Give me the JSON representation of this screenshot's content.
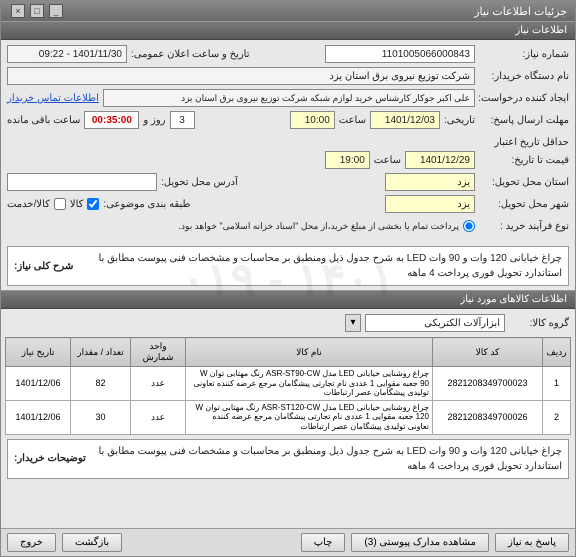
{
  "window": {
    "title": "جزئیات اطلاعات نیاز"
  },
  "section1": {
    "title": "اطلاعات نیاز"
  },
  "fields": {
    "need_no_label": "شماره نیاز:",
    "need_no": "1101005066000843",
    "announce_label": "تاریخ و ساعت اعلان عمومی:",
    "announce_value": "1401/11/30 - 09:22",
    "buyer_org_label": "نام دستگاه خریدار:",
    "buyer_org": "شرکت توزیع نیروی برق استان یزد",
    "requester_label": "ایجاد کننده درخواست:",
    "requester": "علی اکبر جوکار  کارشناس خرید لوازم شبکه  شرکت توزیع نیروی برق استان یزد",
    "contact_link": "اطلاعات تماس خریدار",
    "deadline_label": "مهلت ارسال پاسخ:",
    "deadline_date": "1401/12/03",
    "time_label": "ساعت",
    "deadline_time": "10:00",
    "day_label": "روز و",
    "days_left": "3",
    "remaining_label": "ساعت باقی مانده",
    "countdown": "00:35:00",
    "tarikhi_label": "تاریخی:",
    "validity_label": "حداقل تاریخ اعتبار",
    "validity2_label": "قیمت تا تاریخ:",
    "validity_date": "1401/12/29",
    "validity_time": "19:00",
    "province_label": "استان محل تحویل:",
    "province": "یزد",
    "address_label": "آدرس محل تحویل:",
    "city_label": "شهر محل تحویل:",
    "city": "یزد",
    "category_label": "طبقه بندی موضوعی:",
    "goods_chk": "کالا",
    "service_chk": "کالا/خدمت",
    "process_label": "نوع فرآیند خرید :",
    "process_note": "پرداخت تمام یا بخشی از مبلغ خرید،از محل \"اسناد خزانه اسلامی\" خواهد بود.",
    "process_opt": " "
  },
  "need_desc": {
    "label": "شرح کلی نیاز:",
    "text": "چراغ خیابانی 120 وات و 90 وات LED  به شرح جدول ذیل ومنطبق بر  محاسبات و مشخصات فنی پیوست مطابق با استاندارد تحویل فوری پرداخت 4 ماهه"
  },
  "section2": {
    "title": "اطلاعات کالاهای مورد نیاز"
  },
  "group": {
    "label": "گروه کالا:",
    "value": "ابزارآلات الکتریکی"
  },
  "table": {
    "columns": [
      "ردیف",
      "کد کالا",
      "نام کالا",
      "واحد شمارش",
      "تعداد / مقدار",
      "تاریخ نیاز"
    ],
    "rows": [
      {
        "idx": "1",
        "code": "2821208349700023",
        "name": "چراغ روشنایی خیابانی LED مدل ASR-ST90-CW رنگ مهتابی توان W 90 جعبه مقوایی 1 عددی نام تجارتی پیشگامان مرجع عرضه کننده تعاونی تولیدی پیشگامان عصر ارتباطات",
        "unit": "عدد",
        "qty": "82",
        "date": "1401/12/06"
      },
      {
        "idx": "2",
        "code": "2821208349700026",
        "name": "چراغ روشنایی خیابانی LED مدل ASR-ST120-CW رنگ مهتابی توان W 120 جعبه مقوایی 1 عددی نام تجارتی پیشگامان مرجع عرضه کننده تعاونی تولیدی پیشگامان عصر ارتباطات",
        "unit": "عدد",
        "qty": "30",
        "date": "1401/12/06"
      }
    ]
  },
  "buyer_desc": {
    "label": "توضیحات خریدار:",
    "text": "چراغ خیابانی 120 وات و 90 وات LED  به شرح جدول ذیل ومنطبق بر  محاسبات و مشخصات فنی پیوست مطابق با استاندارد تحویل فوری پرداخت 4 ماهه"
  },
  "buttons": {
    "respond": "پاسخ به نیاز",
    "docs": "مشاهده مدارک پیوستی (3)",
    "print": "چاپ",
    "back": "بازگشت",
    "exit": "خروج"
  },
  "watermark": "۱۴۰۱ - ۰۱۹"
}
